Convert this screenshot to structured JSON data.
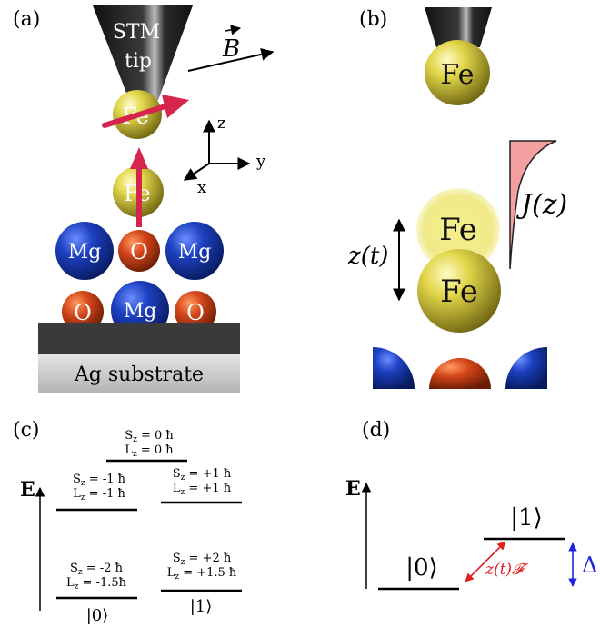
{
  "panel_a": {
    "label": "(a)",
    "tip_line1": "STM",
    "tip_line2": "tip",
    "field_label": "B",
    "tip_atom": "Fe",
    "adatom": "Fe",
    "axis_z": "z",
    "axis_y": "y",
    "axis_x": "x",
    "row1": [
      "Mg",
      "O",
      "Mg"
    ],
    "row2": [
      "O",
      "Mg",
      "O"
    ],
    "substrate": "Ag substrate"
  },
  "panel_b": {
    "label": "(b)",
    "tip_atom": "Fe",
    "ghost_atom": "Fe",
    "atom": "Fe",
    "displacement": "z(t)",
    "coupling": "J(z)"
  },
  "panel_c": {
    "label": "(c)",
    "energy_axis": "E",
    "levels": [
      {
        "sz": "S",
        "sz_sub": "z",
        "sz_val": " = 0 ħ",
        "lz": "L",
        "lz_sub": "z",
        "lz_val": " = 0 ħ"
      },
      {
        "sz": "S",
        "sz_sub": "z",
        "sz_val": " = -1 ħ",
        "lz": "L",
        "lz_sub": "z",
        "lz_val": " = -1 ħ"
      },
      {
        "sz": "S",
        "sz_sub": "z",
        "sz_val": " = +1 ħ",
        "lz": "L",
        "lz_sub": "z",
        "lz_val": " = +1 ħ"
      },
      {
        "sz": "S",
        "sz_sub": "z",
        "sz_val": " = -2 ħ",
        "lz": "L",
        "lz_sub": "z",
        "lz_val": " = -1.5ħ"
      },
      {
        "sz": "S",
        "sz_sub": "z",
        "sz_val": " = +2 ħ",
        "lz": "L",
        "lz_sub": "z",
        "lz_val": " = +1.5 ħ"
      }
    ],
    "state0": "|0⟩",
    "state1": "|1⟩"
  },
  "panel_d": {
    "label": "(d)",
    "energy_axis": "E",
    "state0": "|0⟩",
    "state1": "|1⟩",
    "drive": "z(t)𝓕",
    "gap": "Δ"
  },
  "colors": {
    "fe": "#d8cc3a",
    "mg": "#1a3fb5",
    "o": "#d0451a",
    "moment_arrow": "#d6254d",
    "drive_arrow": "#e02020",
    "gap_arrow": "#2222dd",
    "tip": "#1a1a1a",
    "coupling_fill": "#f4a0a0"
  }
}
